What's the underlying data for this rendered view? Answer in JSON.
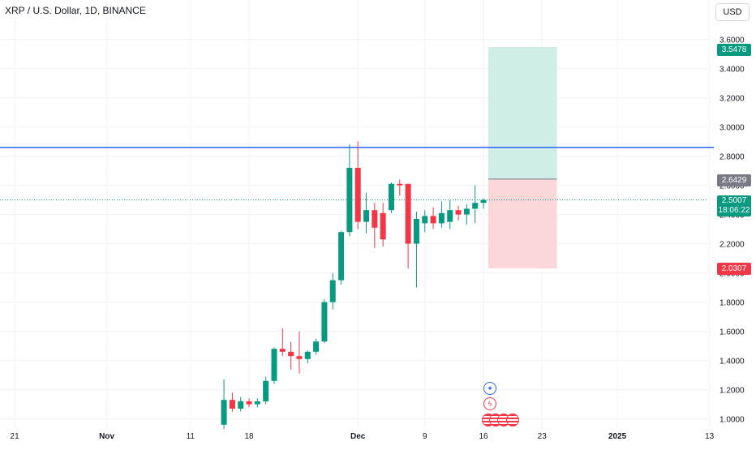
{
  "header": {
    "title": "XRP / U.S. Dollar, 1D, BINANCE",
    "currency_button": "USD"
  },
  "price_labels": {
    "target": "3.5478",
    "entry": "2.6429",
    "stop": "2.0307",
    "last_price": "2.5007",
    "countdown": "18:06:22"
  },
  "colors": {
    "up": "#089981",
    "down": "#f23645",
    "level_line": "#2962ff",
    "profit_zone": "#cfeee8",
    "loss_zone": "#fcd7da"
  },
  "events": {
    "icons": [
      "star-event-icon",
      "bolt-event-icon"
    ],
    "flag_count": 4
  },
  "chart_data": {
    "type": "candlestick",
    "title": "XRP / U.S. Dollar, 1D, BINANCE",
    "y_axis": {
      "ticks": [
        "3.6000",
        "3.4000",
        "3.2000",
        "3.0000",
        "2.8000",
        "2.6000",
        "2.4000",
        "2.2000",
        "2.0000",
        "1.8000",
        "1.6000",
        "1.4000",
        "1.2000",
        "1.0000"
      ],
      "ylim": [
        0.97,
        3.62
      ]
    },
    "x_axis": {
      "ticks": [
        {
          "label": "21",
          "day": 21
        },
        {
          "label": "Nov",
          "day": 32
        },
        {
          "label": "11",
          "day": 42
        },
        {
          "label": "18",
          "day": 49
        },
        {
          "label": "Dec",
          "day": 62
        },
        {
          "label": "9",
          "day": 70
        },
        {
          "label": "16",
          "day": 77
        },
        {
          "label": "23",
          "day": 84
        },
        {
          "label": "2025",
          "day": 93
        },
        {
          "label": "13",
          "day": 104
        }
      ]
    },
    "candles": [
      {
        "day": 46,
        "open": 0.96,
        "high": 1.27,
        "low": 0.93,
        "close": 1.13
      },
      {
        "day": 47,
        "open": 1.13,
        "high": 1.18,
        "low": 1.05,
        "close": 1.07
      },
      {
        "day": 48,
        "open": 1.07,
        "high": 1.15,
        "low": 1.05,
        "close": 1.12
      },
      {
        "day": 49,
        "open": 1.12,
        "high": 1.14,
        "low": 1.08,
        "close": 1.1
      },
      {
        "day": 50,
        "open": 1.1,
        "high": 1.14,
        "low": 1.08,
        "close": 1.12
      },
      {
        "day": 51,
        "open": 1.12,
        "high": 1.29,
        "low": 1.1,
        "close": 1.26
      },
      {
        "day": 52,
        "open": 1.26,
        "high": 1.49,
        "low": 1.24,
        "close": 1.48
      },
      {
        "day": 53,
        "open": 1.48,
        "high": 1.62,
        "low": 1.43,
        "close": 1.46
      },
      {
        "day": 54,
        "open": 1.46,
        "high": 1.53,
        "low": 1.34,
        "close": 1.43
      },
      {
        "day": 55,
        "open": 1.43,
        "high": 1.6,
        "low": 1.31,
        "close": 1.41
      },
      {
        "day": 56,
        "open": 1.41,
        "high": 1.47,
        "low": 1.38,
        "close": 1.46
      },
      {
        "day": 57,
        "open": 1.46,
        "high": 1.55,
        "low": 1.44,
        "close": 1.53
      },
      {
        "day": 58,
        "open": 1.53,
        "high": 1.82,
        "low": 1.52,
        "close": 1.8
      },
      {
        "day": 59,
        "open": 1.8,
        "high": 2.0,
        "low": 1.75,
        "close": 1.95
      },
      {
        "day": 60,
        "open": 1.95,
        "high": 2.29,
        "low": 1.92,
        "close": 2.28
      },
      {
        "day": 61,
        "open": 2.28,
        "high": 2.88,
        "low": 2.25,
        "close": 2.72
      },
      {
        "day": 62,
        "open": 2.72,
        "high": 2.9,
        "low": 2.3,
        "close": 2.35
      },
      {
        "day": 63,
        "open": 2.35,
        "high": 2.55,
        "low": 2.27,
        "close": 2.43
      },
      {
        "day": 64,
        "open": 2.43,
        "high": 2.48,
        "low": 2.17,
        "close": 2.31
      },
      {
        "day": 65,
        "open": 2.41,
        "high": 2.48,
        "low": 2.18,
        "close": 2.23
      },
      {
        "day": 66,
        "open": 2.43,
        "high": 2.62,
        "low": 2.41,
        "close": 2.61
      },
      {
        "day": 67,
        "open": 2.61,
        "high": 2.64,
        "low": 2.53,
        "close": 2.6
      },
      {
        "day": 68,
        "open": 2.61,
        "high": 2.61,
        "low": 2.03,
        "close": 2.2
      },
      {
        "day": 69,
        "open": 2.2,
        "high": 2.42,
        "low": 1.9,
        "close": 2.37
      },
      {
        "day": 70,
        "open": 2.34,
        "high": 2.43,
        "low": 2.28,
        "close": 2.39
      },
      {
        "day": 71,
        "open": 2.39,
        "high": 2.45,
        "low": 2.3,
        "close": 2.34
      },
      {
        "day": 72,
        "open": 2.34,
        "high": 2.49,
        "low": 2.31,
        "close": 2.41
      },
      {
        "day": 73,
        "open": 2.35,
        "high": 2.5,
        "low": 2.3,
        "close": 2.43
      },
      {
        "day": 74,
        "open": 2.43,
        "high": 2.46,
        "low": 2.36,
        "close": 2.4
      },
      {
        "day": 75,
        "open": 2.4,
        "high": 2.47,
        "low": 2.33,
        "close": 2.44
      },
      {
        "day": 76,
        "open": 2.44,
        "high": 2.6,
        "low": 2.34,
        "close": 2.48
      },
      {
        "day": 77,
        "open": 2.48,
        "high": 2.51,
        "low": 2.44,
        "close": 2.5
      }
    ],
    "horizontal_line": 2.86,
    "last_price_line": 2.5007,
    "position": {
      "type": "long",
      "entry": 2.6429,
      "target": 3.5478,
      "stop": 2.0307,
      "start_day": 77,
      "end_day": 85
    }
  }
}
